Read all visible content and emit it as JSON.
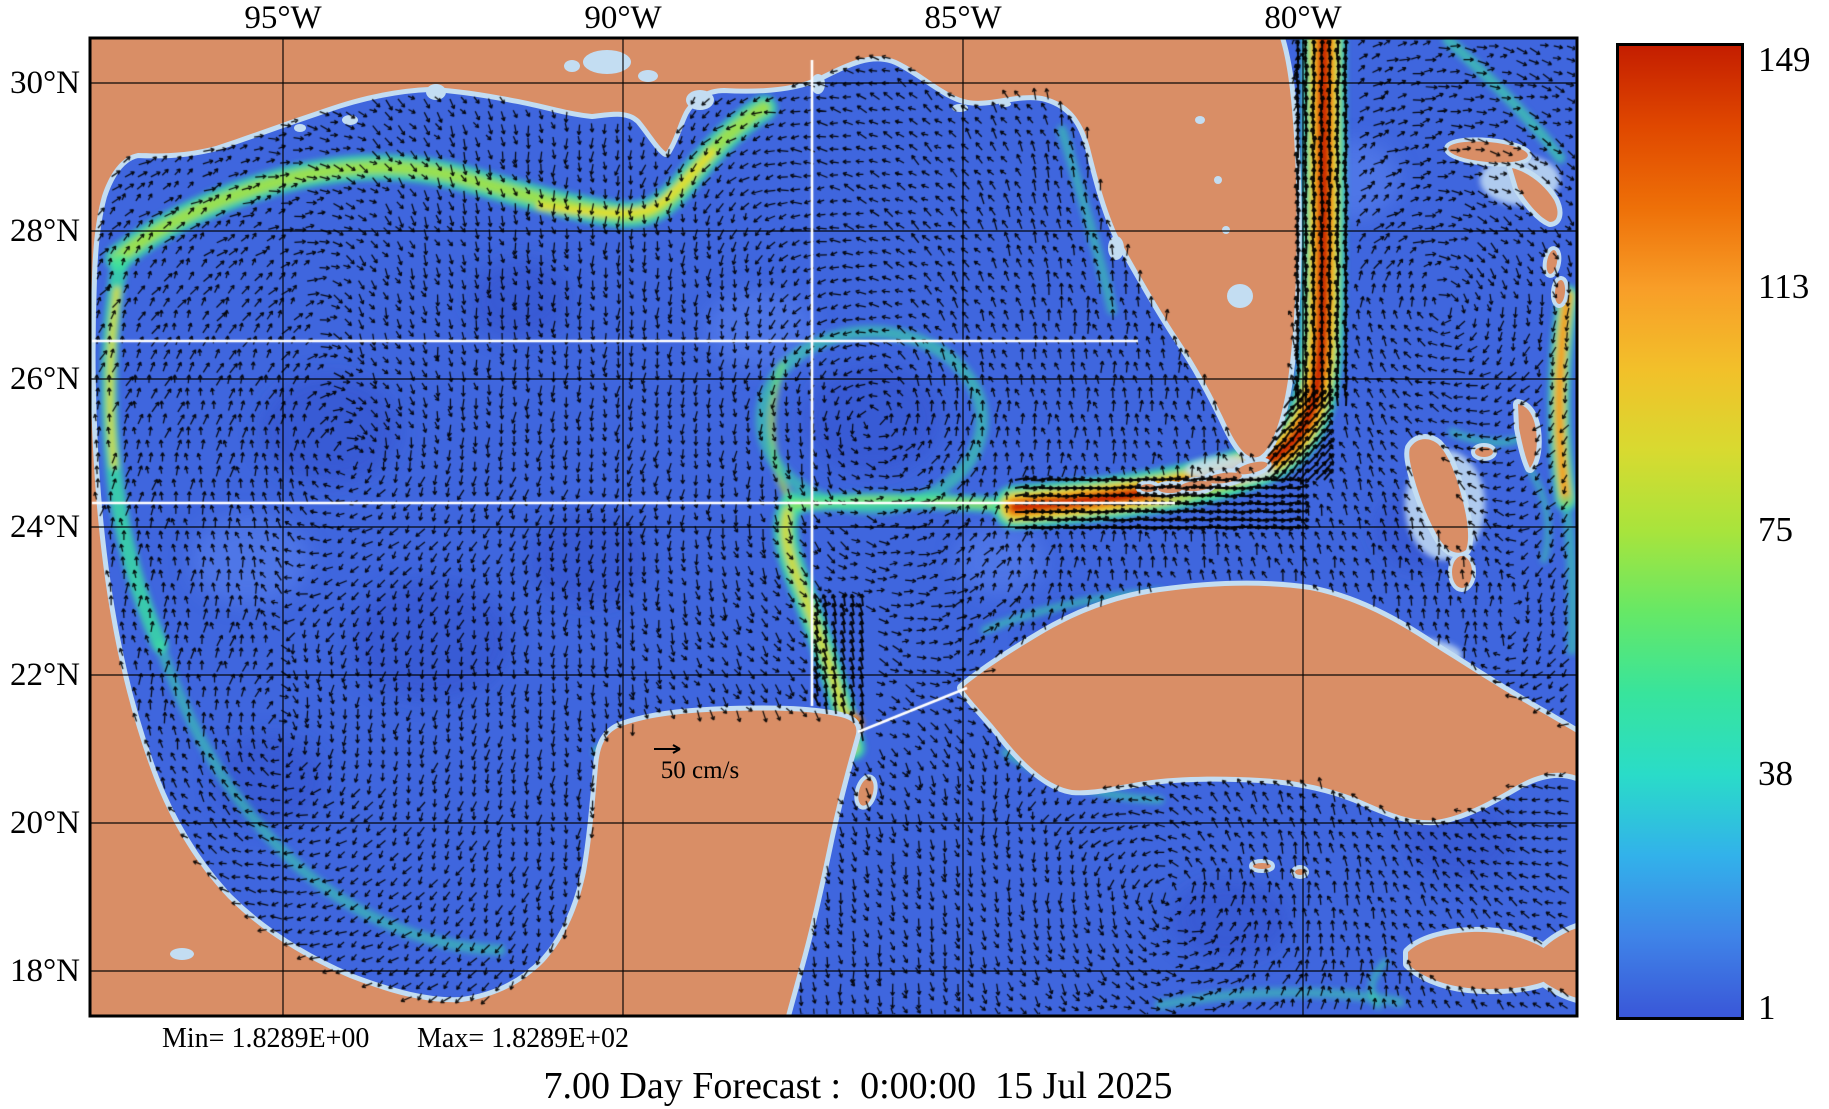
{
  "figure": {
    "title": "7.00 Day Forecast :  0:00:00  15 Jul 2025",
    "stats": {
      "min": "Min= 1.8289E+00",
      "max": "Max= 1.8289E+02"
    },
    "scale_reference": {
      "label": "50 cm/s"
    }
  },
  "axes": {
    "lon_ticks": [
      "95°W",
      "90°W",
      "85°W",
      "80°W"
    ],
    "lat_ticks": [
      "30°N",
      "28°N",
      "26°N",
      "24°N",
      "22°N",
      "20°N",
      "18°N"
    ]
  },
  "colorbar": {
    "tick_labels": [
      "149",
      "113",
      "75",
      "38",
      "1"
    ],
    "max": 149,
    "min": 1,
    "gradient_top_to_bottom": [
      "#c41e00",
      "#e04800",
      "#ee7008",
      "#f89e28",
      "#f2c02a",
      "#d8da30",
      "#a8e43c",
      "#66e866",
      "#38e49c",
      "#2adcc8",
      "#32b2ea",
      "#3f84e8",
      "#3a57d8"
    ]
  },
  "map_colors": {
    "ocean": "#3f66de",
    "land": "#d98e66",
    "shallow": "#c3ddf2",
    "vectors": "#000000",
    "grid": "#000000",
    "section_lines": "#ffffff"
  }
}
